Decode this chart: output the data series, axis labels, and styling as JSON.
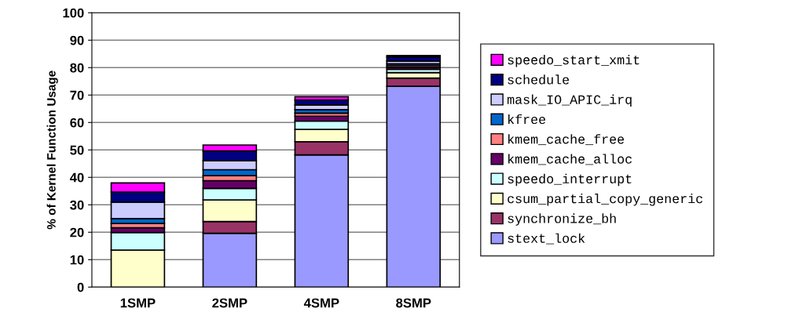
{
  "chart_data": {
    "type": "bar",
    "stacked": true,
    "ylabel": "% of Kernel Function Usage",
    "categories": [
      "1SMP",
      "2SMP",
      "4SMP",
      "8SMP"
    ],
    "ylim": [
      0,
      100
    ],
    "yticks": [
      0,
      10,
      20,
      30,
      40,
      50,
      60,
      70,
      80,
      90,
      100
    ],
    "grid": "y",
    "legend": "right",
    "series": [
      {
        "name": "stext_lock",
        "color": "#9999ff",
        "values": [
          0,
          19.6,
          48.2,
          73.2
        ]
      },
      {
        "name": "synchronize_bh",
        "color": "#993366",
        "values": [
          0,
          4.3,
          4.8,
          3.0
        ]
      },
      {
        "name": "csum_partial_copy_generic",
        "color": "#ffffcc",
        "values": [
          13.5,
          7.9,
          4.5,
          2.0
        ]
      },
      {
        "name": "speedo_interrupt",
        "color": "#ccffff",
        "values": [
          6.4,
          4.2,
          3.0,
          1.2
        ]
      },
      {
        "name": "kmem_cache_alloc",
        "color": "#660066",
        "values": [
          1.7,
          2.8,
          1.8,
          0.8
        ]
      },
      {
        "name": "kmem_cache_free",
        "color": "#ff8080",
        "values": [
          1.6,
          1.8,
          1.1,
          0.6
        ]
      },
      {
        "name": "kfree",
        "color": "#0066cc",
        "values": [
          1.8,
          2.2,
          1.3,
          0.6
        ]
      },
      {
        "name": "mask_IO_APIC_irq",
        "color": "#ccccff",
        "values": [
          6.0,
          3.3,
          1.7,
          1.0
        ]
      },
      {
        "name": "schedule",
        "color": "#000080",
        "values": [
          3.6,
          3.5,
          1.8,
          1.5
        ]
      },
      {
        "name": "speedo_start_xmit",
        "color": "#ff00ff",
        "values": [
          3.4,
          2.2,
          1.2,
          0.5
        ]
      }
    ]
  }
}
